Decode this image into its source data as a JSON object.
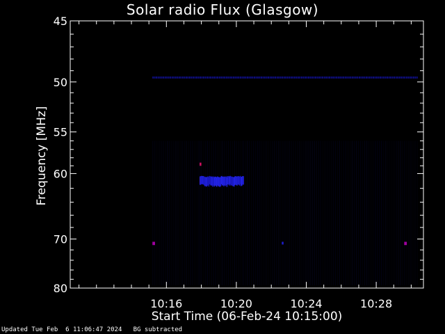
{
  "chart_data": {
    "type": "heatmap",
    "title": "Solar radio Flux (Glasgow)",
    "xlabel": "Start Time (06-Feb-24 10:15:00)",
    "ylabel": "Frequency [MHz]",
    "x_range_minutes": [
      10.5,
      30.7
    ],
    "x_ticks": [
      {
        "minute": 16,
        "label": "10:16"
      },
      {
        "minute": 20,
        "label": "10:20"
      },
      {
        "minute": 24,
        "label": "10:24"
      },
      {
        "minute": 28,
        "label": "10:28"
      }
    ],
    "y_scale": "reciprocal",
    "ylim": [
      45,
      80
    ],
    "y_ticks": [
      45,
      50,
      55,
      60,
      70,
      80
    ],
    "y_minor_ticks": [
      46,
      47,
      48,
      49,
      51,
      52,
      53,
      54,
      56,
      57,
      58,
      59,
      62,
      64,
      66,
      68,
      72,
      74,
      76,
      78
    ],
    "grid": false,
    "colorscale": [
      "#000000",
      "#0a0a40",
      "#1010a0",
      "#2a2aff",
      "#a000a0",
      "#ff2020"
    ],
    "features": [
      {
        "name": "interference line",
        "minute_start": 15.2,
        "minute_end": 30.4,
        "freq": 49.6,
        "intensity": 0.35
      },
      {
        "name": "burst core",
        "minute_start": 17.9,
        "minute_end": 18.4,
        "freq_min": 60.5,
        "freq_max": 61.4,
        "intensity": 1.0
      },
      {
        "name": "burst core",
        "minute_start": 18.5,
        "minute_end": 18.8,
        "freq_min": 60.7,
        "freq_max": 61.2,
        "intensity": 0.9
      },
      {
        "name": "burst tail",
        "minute_start": 17.9,
        "minute_end": 20.4,
        "freq_min": 60.4,
        "freq_max": 61.6,
        "intensity": 0.45
      },
      {
        "name": "spot",
        "minute_start": 17.9,
        "minute_end": 18.0,
        "freq_min": 58.6,
        "freq_max": 59.0,
        "intensity": 0.9
      },
      {
        "name": "spot",
        "minute_start": 15.2,
        "minute_end": 15.35,
        "freq_min": 70.5,
        "freq_max": 71.1,
        "intensity": 0.8
      },
      {
        "name": "spot",
        "minute_start": 29.6,
        "minute_end": 29.75,
        "freq_min": 70.5,
        "freq_max": 71.1,
        "intensity": 0.8
      },
      {
        "name": "spot",
        "minute_start": 22.6,
        "minute_end": 22.7,
        "freq_min": 70.5,
        "freq_max": 71.0,
        "intensity": 0.5
      }
    ]
  },
  "status_text": "Updated Tue Feb  6 11:06:47 2024   BG subtracted",
  "colors": {
    "background": "#000000",
    "foreground": "#ffffff"
  }
}
